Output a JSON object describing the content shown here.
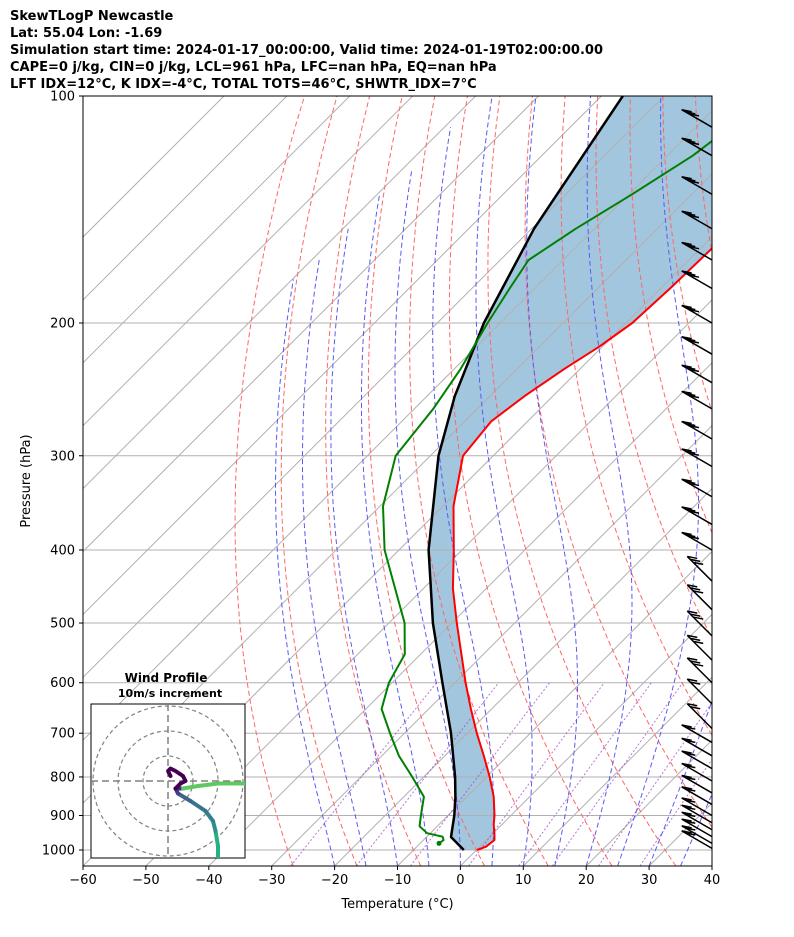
{
  "header": {
    "line1": "SkewTLogP Newcastle",
    "line2": "Lat: 55.04   Lon: -1.69",
    "line3": "Simulation start time: 2024-01-17_00:00:00, Valid time: 2024-01-19T02:00:00.00",
    "line4": "CAPE=0 j/kg, CIN=0 j/kg, LCL=961 hPa, LFC=nan hPa, EQ=nan hPa",
    "line5": "LFT IDX=12°C, K IDX=-4°C, TOTAL TOTS=46°C, SHWTR_IDX=7°C"
  },
  "chart_data": {
    "type": "skewt-logp",
    "xlabel": "Temperature (°C)",
    "ylabel": "Pressure (hPa)",
    "xlim": [
      -60,
      40
    ],
    "ylim": [
      1050,
      100
    ],
    "x_ticks": [
      "−60",
      "−50",
      "−40",
      "−30",
      "−20",
      "−10",
      "0",
      "10",
      "20",
      "30",
      "40"
    ],
    "y_ticks": [
      1000,
      900,
      800,
      700,
      600,
      500,
      400,
      300,
      200,
      100
    ],
    "temperature": {
      "color": "#ff0000",
      "p": [
        1000,
        990,
        970,
        950,
        925,
        900,
        850,
        800,
        750,
        700,
        650,
        600,
        550,
        500,
        450,
        400,
        350,
        300,
        270,
        250,
        230,
        215,
        200,
        180,
        160,
        140,
        125,
        110,
        100
      ],
      "t": [
        0.1,
        1.0,
        1.3,
        0.2,
        -1.3,
        -2.6,
        -5.7,
        -9.5,
        -13.8,
        -18.5,
        -23.3,
        -28.3,
        -33.5,
        -39.2,
        -45.3,
        -51.3,
        -58.3,
        -64.8,
        -65.8,
        -64.5,
        -62.5,
        -60.5,
        -59.0,
        -58.5,
        -58.2,
        -57.8,
        -57.6,
        -58.0,
        -58.5
      ]
    },
    "dewpoint": {
      "color": "#008000",
      "p": [
        980,
        970,
        960,
        950,
        930,
        900,
        850,
        800,
        750,
        700,
        650,
        600,
        550,
        500,
        450,
        400,
        350,
        300,
        260,
        230,
        200,
        180,
        165,
        150,
        135,
        120,
        100
      ],
      "td": [
        -7.0,
        -6.8,
        -7.5,
        -10.5,
        -12.8,
        -14.3,
        -16.8,
        -21.8,
        -27.3,
        -32.3,
        -37.5,
        -40.5,
        -42.5,
        -47.5,
        -54.5,
        -62.3,
        -69.5,
        -75.5,
        -77.0,
        -79.0,
        -82.0,
        -84.0,
        -85.5,
        -83.0,
        -79.5,
        -76.0,
        -73.0
      ]
    },
    "parcel_profile": {
      "color": "#000000",
      "p": [
        1000,
        961,
        900,
        850,
        800,
        700,
        600,
        500,
        400,
        300,
        250,
        200,
        150,
        100
      ],
      "t": [
        -2.0,
        -6.1,
        -9.0,
        -11.8,
        -15.0,
        -22.6,
        -32.0,
        -43.0,
        -55.3,
        -68.7,
        -75.6,
        -82.6,
        -89.6,
        -96.6
      ]
    },
    "shading": "cin_between_parcel_and_temperature",
    "wind_barbs_note": "barbs drawn at right edge from 1000 to 100 hPa",
    "hodograph": {
      "title": "Wind Profile",
      "subtitle": "10m/s increment",
      "rings_ms": [
        10,
        20,
        30
      ]
    },
    "grid": true
  }
}
